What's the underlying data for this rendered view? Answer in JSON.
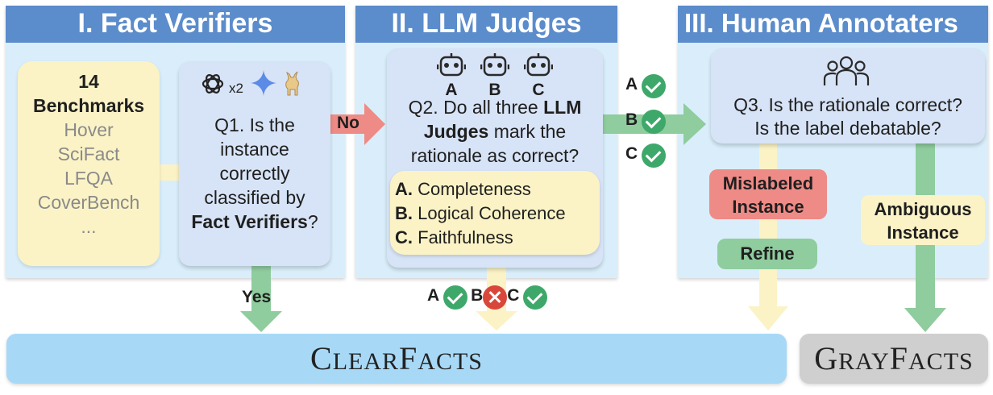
{
  "headers": {
    "fact_verifiers": "I. Fact Verifiers",
    "llm_judges": "II. LLM Judges",
    "human_annotaters": "III. Human Annotaters"
  },
  "benchmarks": {
    "count": "14",
    "title": "Benchmarks",
    "items": [
      "Hover",
      "SciFact",
      "LFQA",
      "CoverBench",
      "..."
    ]
  },
  "q1": {
    "prefix": "Q1. Is the instance correctly classified by",
    "bold": "Fact Verifiers",
    "suffix": "?",
    "multiplier": "x2"
  },
  "q2": {
    "prefix": "Q2. Do all three",
    "bold": "LLM Judges",
    "suffix": "mark the rationale as correct?"
  },
  "judges": [
    "A",
    "B",
    "C"
  ],
  "criteria": [
    {
      "letter": "A.",
      "text": "Completeness"
    },
    {
      "letter": "B.",
      "text": "Logical Coherence"
    },
    {
      "letter": "C.",
      "text": "Faithfulness"
    }
  ],
  "q3": {
    "line1": "Q3. Is the rationale correct?",
    "line2": "Is the label debatable?"
  },
  "arrows": {
    "no": "No",
    "yes": "Yes"
  },
  "tags": {
    "mislabeled": [
      "Mislabeled",
      "Instance"
    ],
    "refine": "Refine",
    "ambiguous": [
      "Ambiguous",
      "Instance"
    ]
  },
  "outputs": {
    "clearfacts": {
      "c1": "C",
      "r1": "LEAR",
      "c2": "F",
      "r2": "ACTS"
    },
    "grayfacts": {
      "c1": "G",
      "r1": "RAY",
      "c2": "F",
      "r2": "ACTS"
    }
  },
  "colors": {
    "header": "#5b8ccb",
    "panel": "#d9eefa",
    "check": "#3ea86a",
    "cross": "#d9473b",
    "no_arrow": "#ee8b86",
    "yes_arrow": "#8fcc9e",
    "clearfacts": "#a7d9f7",
    "grayfacts": "#cfcfcf"
  }
}
